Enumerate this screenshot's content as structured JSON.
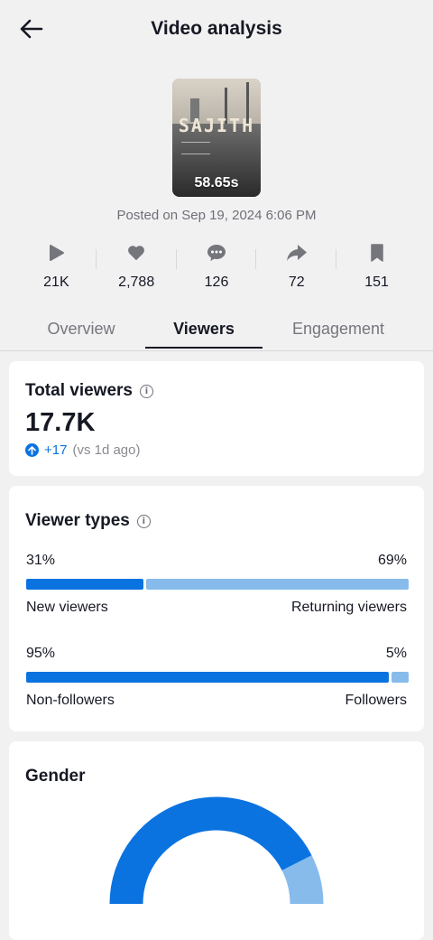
{
  "header": {
    "title": "Video analysis",
    "back_icon": "arrow-left-icon"
  },
  "video": {
    "duration": "58.65s",
    "brand_text": "SAJITH",
    "posted": "Posted on Sep 19, 2024 6:06 PM"
  },
  "stats": [
    {
      "icon": "play-icon",
      "value": "21K"
    },
    {
      "icon": "heart-icon",
      "value": "2,788"
    },
    {
      "icon": "comment-icon",
      "value": "126"
    },
    {
      "icon": "share-icon",
      "value": "72"
    },
    {
      "icon": "bookmark-icon",
      "value": "151"
    }
  ],
  "tabs": [
    {
      "label": "Overview",
      "active": false
    },
    {
      "label": "Viewers",
      "active": true
    },
    {
      "label": "Engagement",
      "active": false
    }
  ],
  "total_viewers": {
    "title": "Total viewers",
    "value": "17.7K",
    "delta": "+17",
    "compare": "(vs 1d ago)"
  },
  "viewer_types": {
    "title": "Viewer types",
    "rows": [
      {
        "left_pct": "31%",
        "right_pct": "69%",
        "left_label": "New viewers",
        "right_label": "Returning viewers",
        "left_fraction": 0.31
      },
      {
        "left_pct": "95%",
        "right_pct": "5%",
        "left_label": "Non-followers",
        "right_label": "Followers",
        "left_fraction": 0.95
      }
    ]
  },
  "gender": {
    "title": "Gender",
    "segments": [
      {
        "fraction": 0.85
      },
      {
        "fraction": 0.15
      }
    ]
  },
  "colors": {
    "primary": "#0b73e0",
    "secondary": "#86bbec",
    "text": "#161823",
    "muted": "#75767c"
  }
}
